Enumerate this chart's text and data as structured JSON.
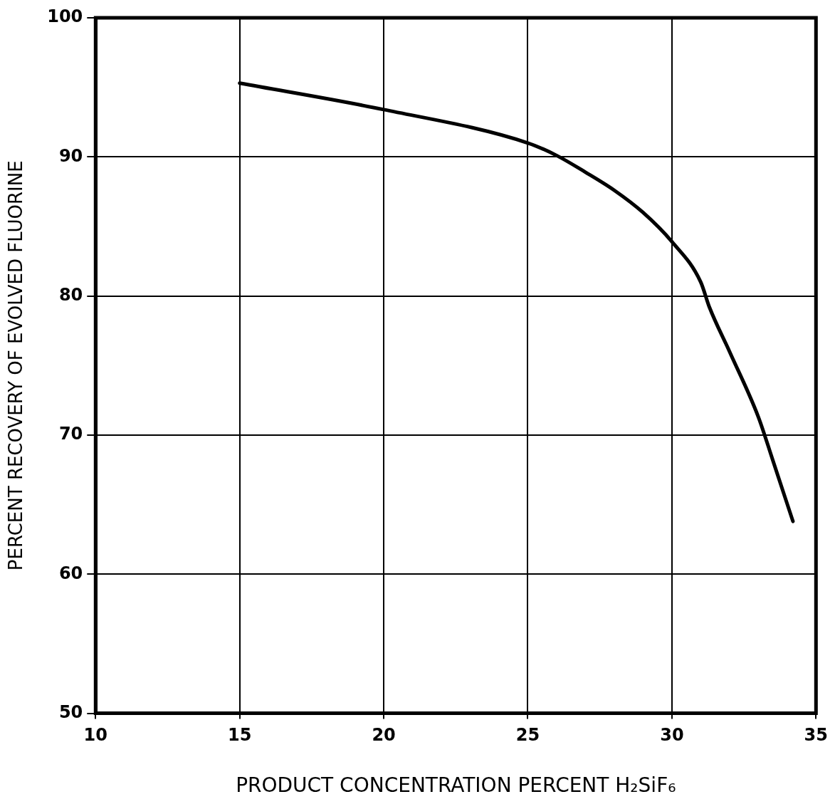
{
  "chart_data": {
    "type": "line",
    "xlabel": "PRODUCT CONCENTRATION PERCENT H₂SiF₆",
    "ylabel": "PERCENT RECOVERY OF EVOLVED FLUORINE",
    "x": [
      15,
      20,
      25,
      26,
      27,
      28,
      29,
      30,
      31,
      31.3,
      32,
      33,
      33.5,
      34.2
    ],
    "series": [
      {
        "color": "#000000",
        "values": [
          95.3,
          93.4,
          91.0,
          90.1,
          88.9,
          87.6,
          86.0,
          83.9,
          81.0,
          79.2,
          76.0,
          71.3,
          68.2,
          63.8
        ]
      }
    ],
    "xlim": [
      10,
      35
    ],
    "xticks": [
      10,
      15,
      20,
      25,
      30,
      35
    ],
    "ylim": [
      50,
      100
    ],
    "yticks": [
      50,
      60,
      70,
      80,
      90,
      100
    ],
    "grid": true,
    "marker": "none",
    "line_style": "solid",
    "legend": false
  }
}
